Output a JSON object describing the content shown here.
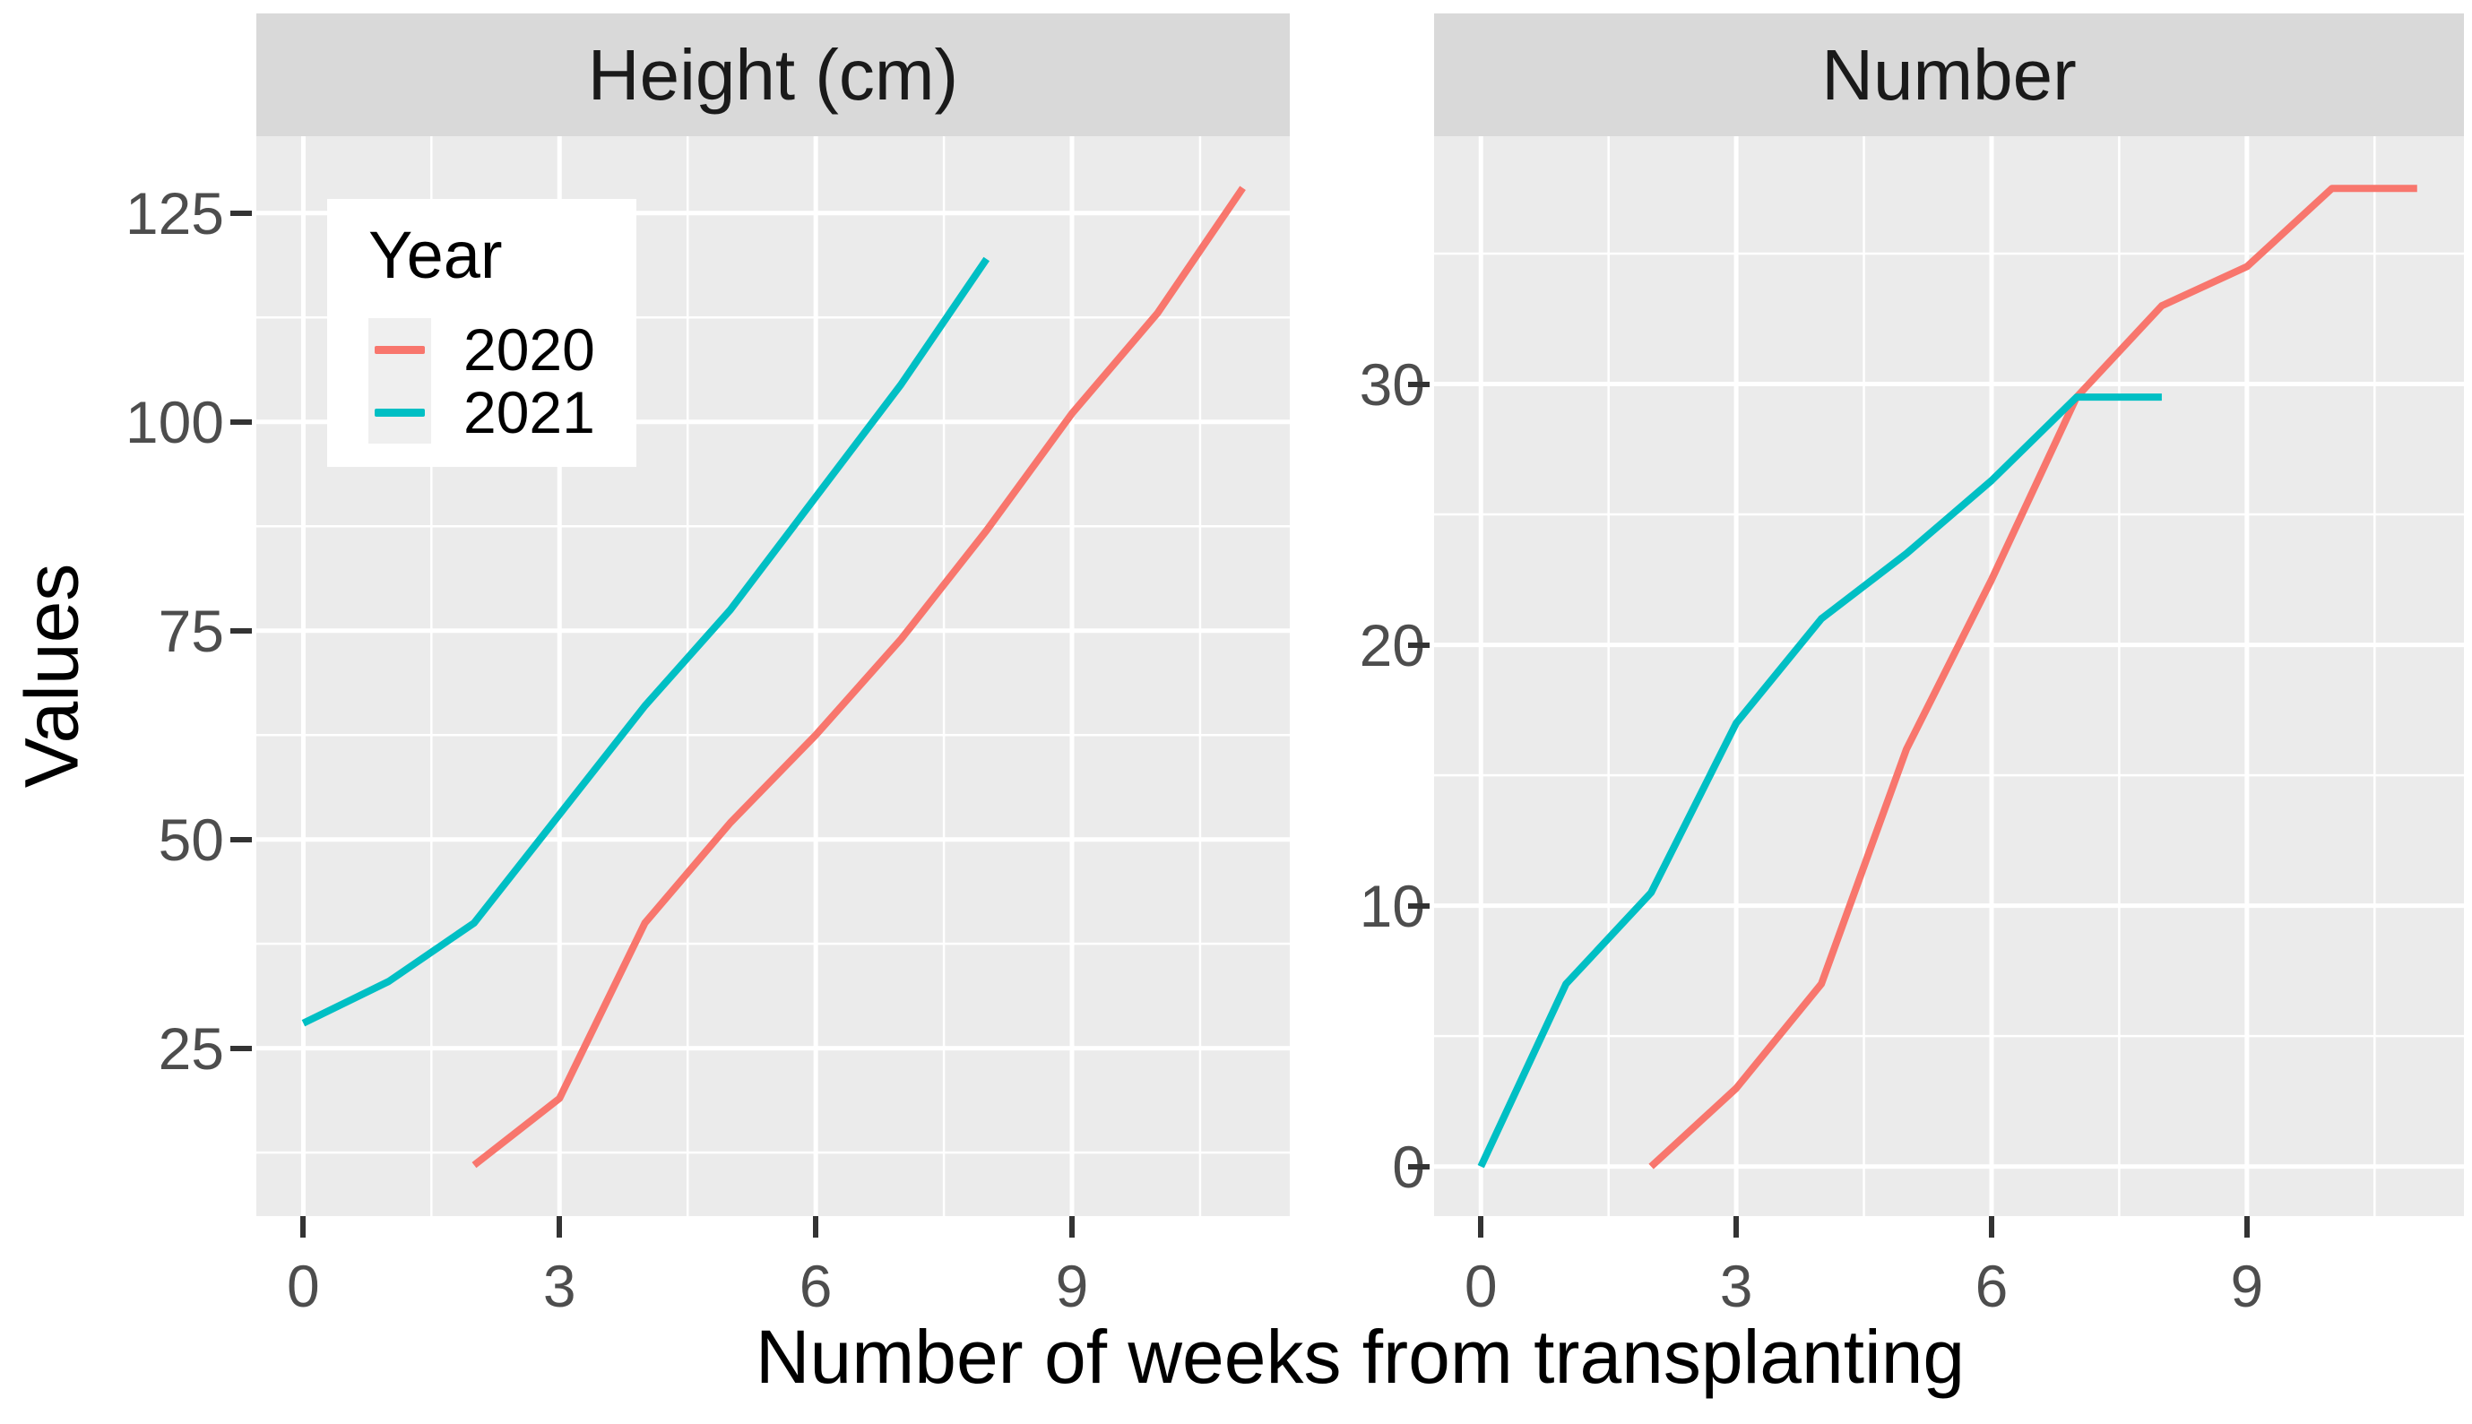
{
  "figure": {
    "x_axis_title": "Number of weeks from transplanting",
    "y_axis_title": "Values",
    "legend": {
      "title": "Year",
      "items": [
        {
          "label": "2020",
          "color": "#F8766D"
        },
        {
          "label": "2021",
          "color": "#00BFC4"
        }
      ]
    },
    "colors": {
      "panel_background": "#EBEBEB",
      "strip_background": "#D9D9D9",
      "gridline": "#FFFFFF",
      "tick_label": "#4D4D4D",
      "tick_mark": "#333333",
      "series_2020": "#F8766D",
      "series_2021": "#00BFC4"
    }
  },
  "chart_data": [
    {
      "type": "line",
      "title": "Height (cm)",
      "xlabel": "Number of weeks from transplanting",
      "ylabel": "Values",
      "xlim": [
        -0.55,
        11.55
      ],
      "ylim": [
        4.9,
        134.2
      ],
      "x_major_ticks": [
        0,
        3,
        6,
        9
      ],
      "x_minor_ticks": [
        1.5,
        4.5,
        7.5,
        10.5
      ],
      "y_major_ticks": [
        25,
        50,
        75,
        100,
        125
      ],
      "y_minor_ticks": [
        12.5,
        37.5,
        62.5,
        87.5,
        112.5
      ],
      "grid": true,
      "legend_position": "inside-top-left",
      "series": [
        {
          "name": "2020",
          "color": "#F8766D",
          "x": [
            2,
            3,
            4,
            5,
            6,
            7,
            8,
            9,
            10,
            11
          ],
          "y": [
            11,
            19,
            40,
            52,
            62.5,
            74,
            87,
            101,
            113,
            128
          ]
        },
        {
          "name": "2021",
          "color": "#00BFC4",
          "x": [
            0,
            1,
            2,
            3,
            4,
            5,
            6,
            7,
            8
          ],
          "y": [
            28,
            33,
            40,
            53,
            66,
            77.5,
            91,
            104.5,
            119.5
          ]
        }
      ]
    },
    {
      "type": "line",
      "title": "Number",
      "xlabel": "Number of weeks from transplanting",
      "ylabel": "Values",
      "xlim": [
        -0.55,
        11.55
      ],
      "ylim": [
        -1.9,
        39.5
      ],
      "x_major_ticks": [
        0,
        3,
        6,
        9
      ],
      "x_minor_ticks": [
        1.5,
        4.5,
        7.5,
        10.5
      ],
      "y_major_ticks": [
        0,
        10,
        20,
        30
      ],
      "y_minor_ticks": [
        5,
        15,
        25,
        35
      ],
      "grid": true,
      "legend_position": "none",
      "series": [
        {
          "name": "2020",
          "color": "#F8766D",
          "x": [
            2,
            3,
            4,
            5,
            6,
            7,
            8,
            9,
            10,
            11
          ],
          "y": [
            0,
            3,
            7,
            16,
            22.5,
            29.5,
            33,
            34.5,
            37.5,
            37.5
          ]
        },
        {
          "name": "2021",
          "color": "#00BFC4",
          "x": [
            0,
            1,
            2,
            3,
            4,
            5,
            6,
            7,
            8
          ],
          "y": [
            0,
            7,
            10.5,
            17,
            21,
            23.5,
            26.3,
            29.5,
            29.5
          ]
        }
      ]
    }
  ]
}
